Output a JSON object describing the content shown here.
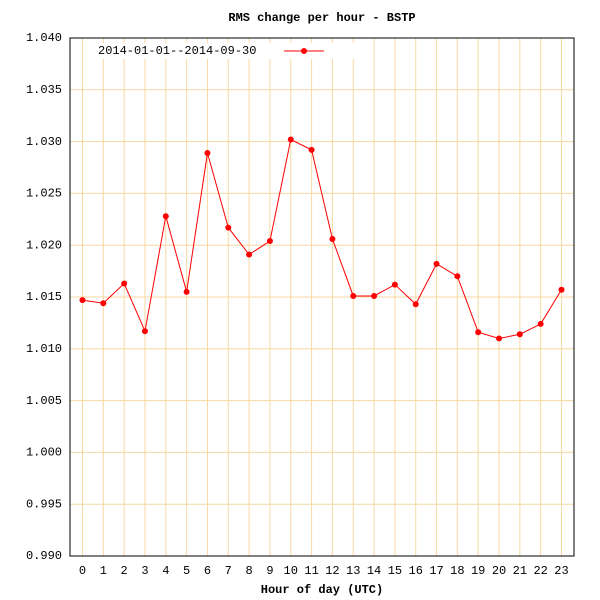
{
  "chart_data": {
    "type": "line",
    "title": "RMS change per hour - BSTP",
    "x_label": "Hour of day (UTC)",
    "x": [
      0,
      1,
      2,
      3,
      4,
      5,
      6,
      7,
      8,
      9,
      10,
      11,
      12,
      13,
      14,
      15,
      16,
      17,
      18,
      19,
      20,
      21,
      22,
      23
    ],
    "series": [
      {
        "name": "2014-01-01--2014-09-30",
        "color": "#ff0000",
        "values": [
          1.0147,
          1.0144,
          1.0163,
          1.0117,
          1.0228,
          1.0155,
          1.0289,
          1.0217,
          1.0191,
          1.0204,
          1.0302,
          1.0292,
          1.0206,
          1.0151,
          1.0151,
          1.0162,
          1.0143,
          1.0182,
          1.017,
          1.0116,
          1.011,
          1.0114,
          1.0124,
          1.0157
        ]
      }
    ],
    "xlim": [
      -0.6,
      23.6
    ],
    "xticks": [
      0,
      1,
      2,
      3,
      4,
      5,
      6,
      7,
      8,
      9,
      10,
      11,
      12,
      13,
      14,
      15,
      16,
      17,
      18,
      19,
      20,
      21,
      22,
      23
    ],
    "ylim": [
      0.99,
      1.04
    ],
    "yticks": [
      {
        "value": 0.99,
        "label": "0.990"
      },
      0.995,
      {
        "value": 1.0,
        "label": "1.000"
      },
      1.005,
      {
        "value": 1.01,
        "label": "1.010"
      },
      1.015,
      {
        "value": 1.02,
        "label": "1.020"
      },
      1.025,
      {
        "value": 1.03,
        "label": "1.030"
      },
      1.035,
      {
        "value": 1.04,
        "label": "1.040"
      }
    ],
    "grid": true,
    "legend": "top-left"
  }
}
